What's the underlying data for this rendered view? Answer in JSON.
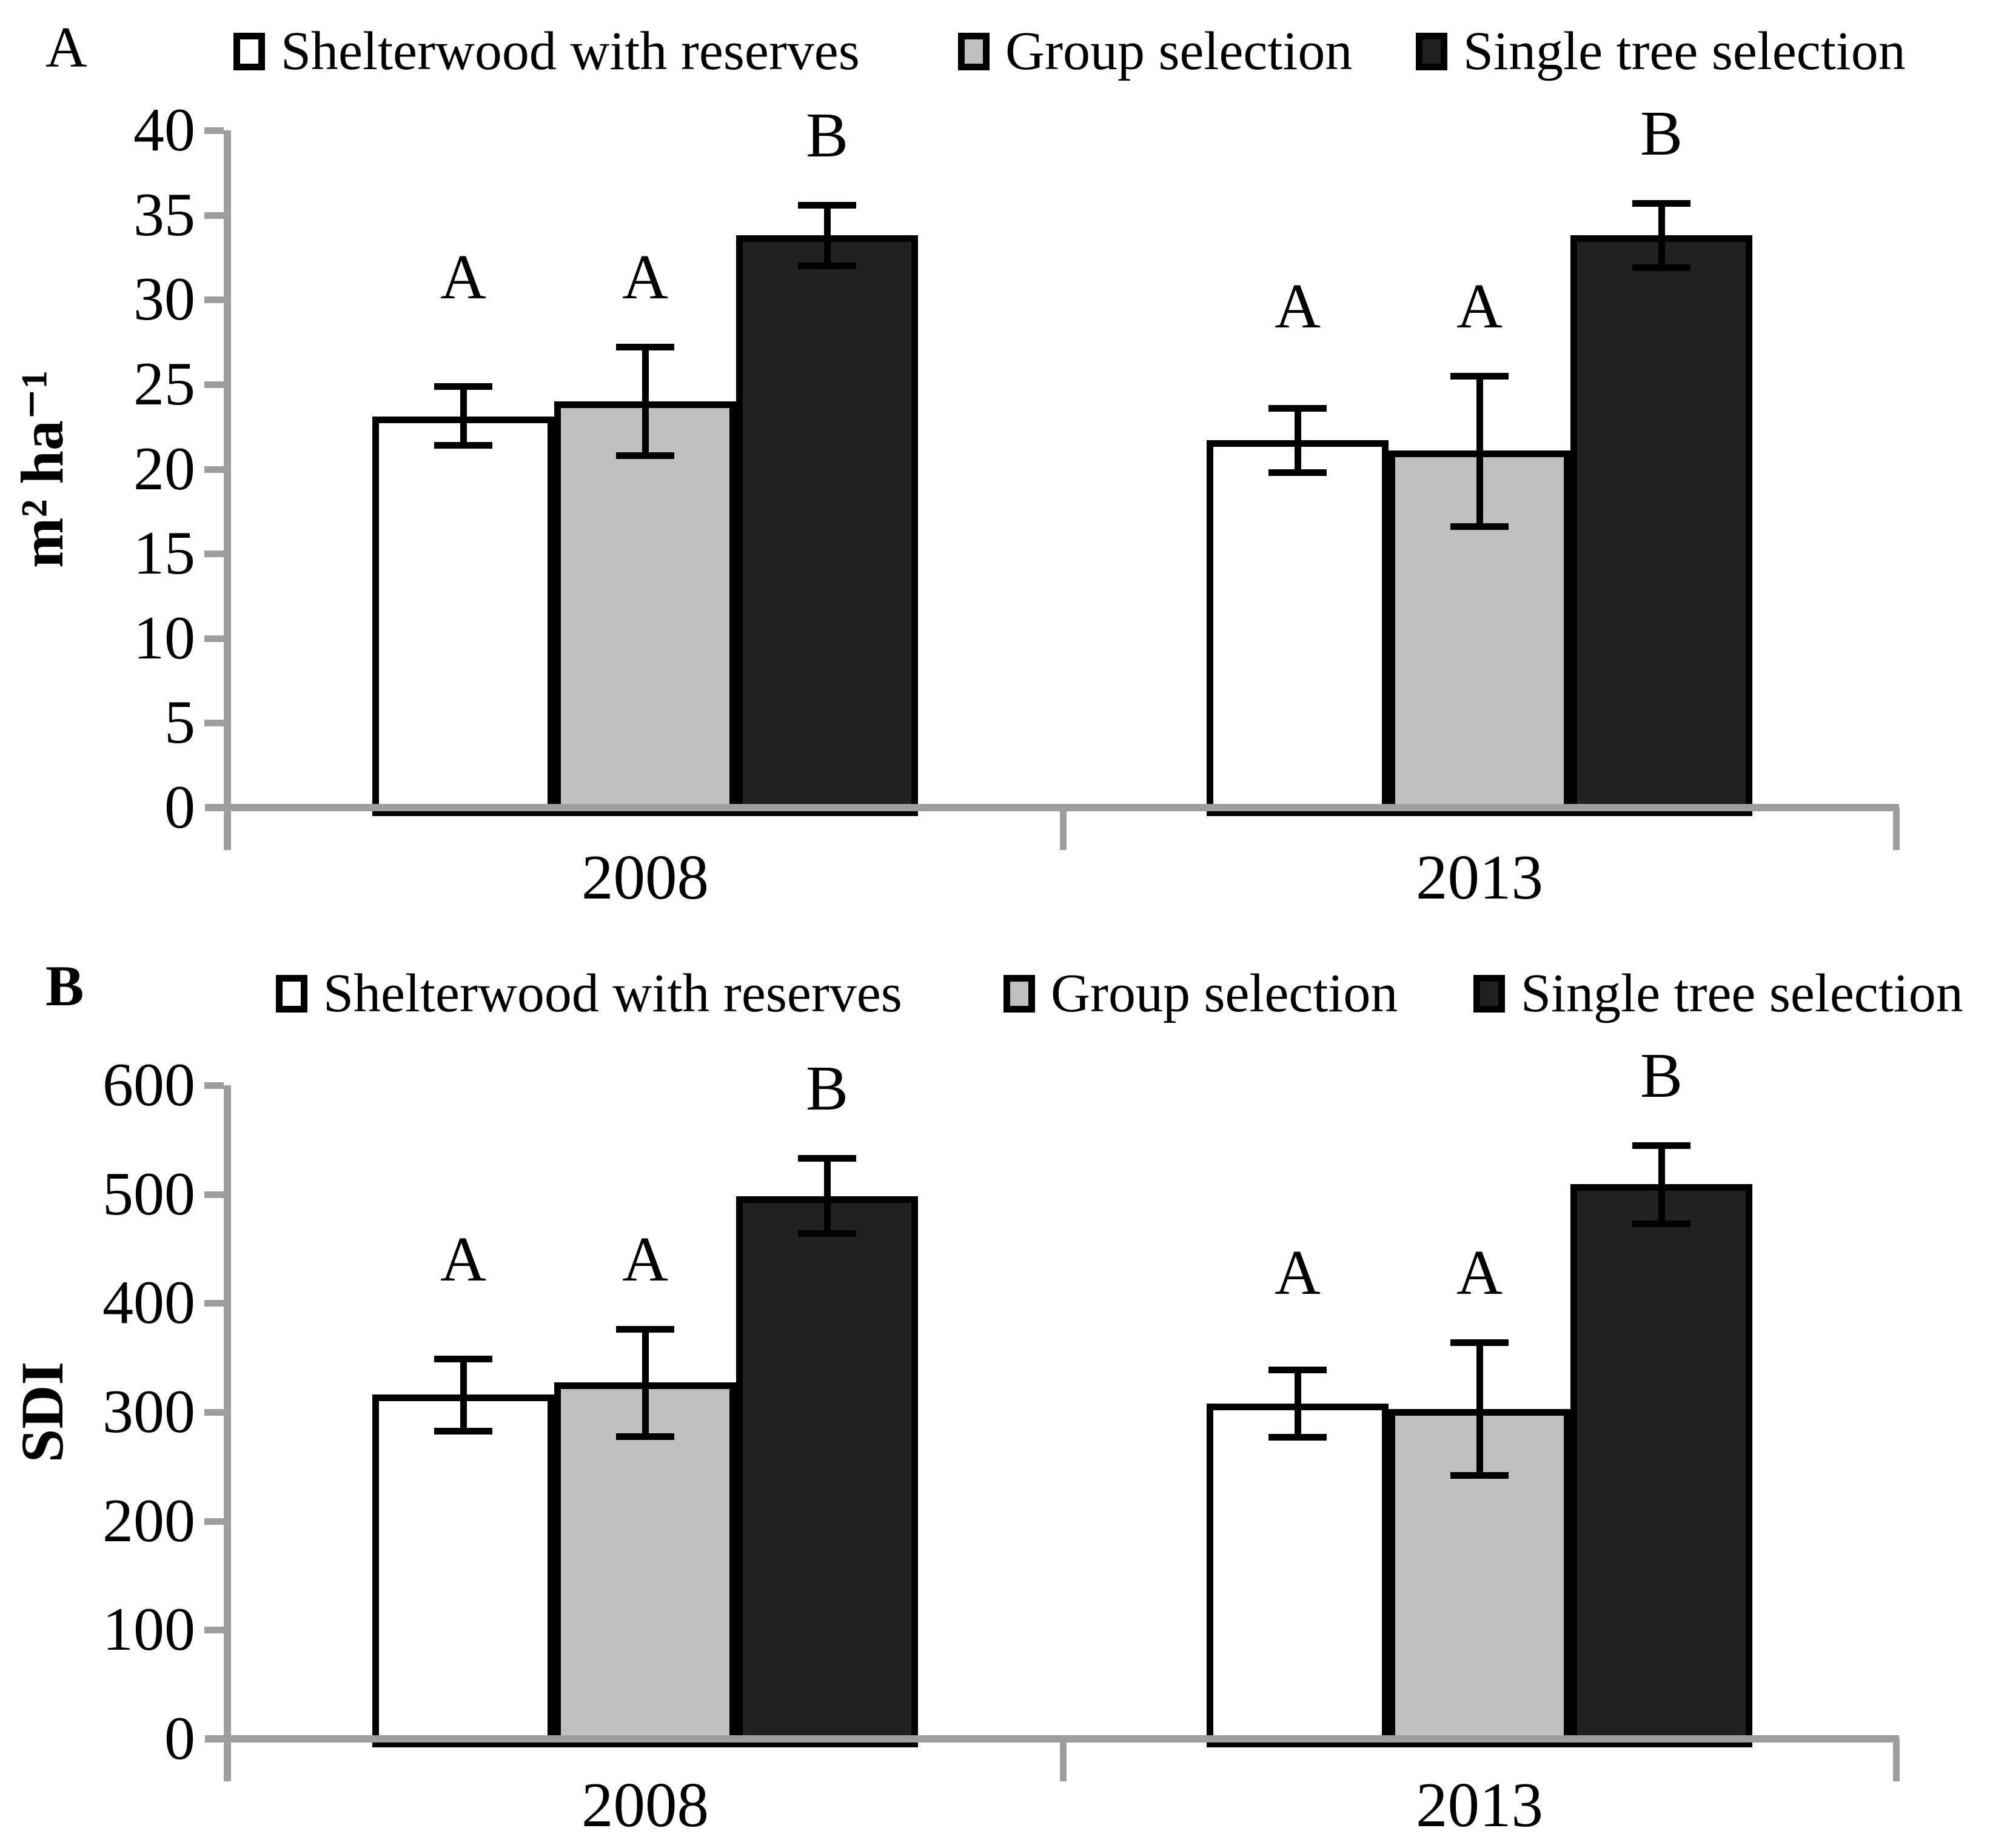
{
  "figure": {
    "background": "#ffffff"
  },
  "chart_data": [
    {
      "type": "bar",
      "panel_label": "A",
      "panel_label_bold": false,
      "ylabel": "m² ha⁻¹",
      "xlabel": "",
      "ylim": [
        0,
        40
      ],
      "yticks": [
        0,
        5,
        10,
        15,
        20,
        25,
        30,
        35,
        40
      ],
      "categories": [
        "2008",
        "2013"
      ],
      "grid": false,
      "legend_position": "top",
      "axis_color": "#9e9e9e",
      "error_bar_color": "#000000",
      "series": [
        {
          "name": "Shelterwood with reserves",
          "fill": "#ffffff",
          "border": "#000000",
          "values": [
            23.1,
            21.7
          ],
          "errors_low": [
            1.7,
            1.9
          ],
          "errors_high": [
            1.8,
            1.9
          ],
          "sig_letters": [
            "A",
            "A"
          ]
        },
        {
          "name": "Group selection",
          "fill": "#bfbfbf",
          "border": "#000000",
          "values": [
            24.0,
            21.1
          ],
          "errors_low": [
            3.2,
            4.5
          ],
          "errors_high": [
            3.2,
            4.4
          ],
          "sig_letters": [
            "A",
            "A"
          ]
        },
        {
          "name": "Single tree selection",
          "fill": "#212121",
          "border": "#000000",
          "values": [
            33.8,
            33.8
          ],
          "errors_low": [
            1.8,
            1.9
          ],
          "errors_high": [
            1.8,
            1.9
          ],
          "sig_letters": [
            "B",
            "B"
          ]
        }
      ]
    },
    {
      "type": "bar",
      "panel_label": "B",
      "panel_label_bold": true,
      "ylabel": "SDI",
      "xlabel": "",
      "ylim": [
        0,
        600
      ],
      "yticks": [
        0,
        100,
        200,
        300,
        400,
        500,
        600
      ],
      "categories": [
        "2008",
        "2013"
      ],
      "grid": false,
      "legend_position": "top",
      "axis_color": "#9e9e9e",
      "error_bar_color": "#000000",
      "series": [
        {
          "name": "Shelterwood with reserves",
          "fill": "#ffffff",
          "border": "#000000",
          "values": [
            316,
            308
          ],
          "errors_low": [
            33,
            31
          ],
          "errors_high": [
            33,
            31
          ],
          "sig_letters": [
            "A",
            "A"
          ]
        },
        {
          "name": "Group selection",
          "fill": "#bfbfbf",
          "border": "#000000",
          "values": [
            327,
            303
          ],
          "errors_low": [
            49,
            61
          ],
          "errors_high": [
            49,
            61
          ],
          "sig_letters": [
            "A",
            "A"
          ]
        },
        {
          "name": "Single tree selection",
          "fill": "#212121",
          "border": "#000000",
          "values": [
            498,
            509
          ],
          "errors_low": [
            34,
            36
          ],
          "errors_high": [
            35,
            36
          ],
          "sig_letters": [
            "B",
            "B"
          ]
        }
      ]
    }
  ]
}
